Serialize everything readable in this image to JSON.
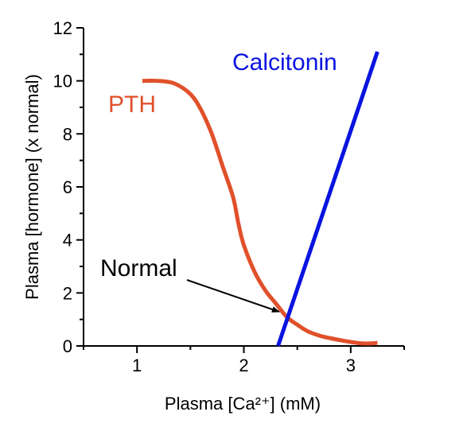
{
  "chart_data": {
    "type": "line",
    "title": "",
    "xlabel": "Plasma [Ca²⁺] (mM)",
    "ylabel": "Plasma [hormone] (x normal)",
    "xlim": [
      0.5,
      3.5
    ],
    "ylim": [
      0,
      12
    ],
    "xticks": [
      1,
      2,
      3
    ],
    "xtick_labels": [
      "1",
      "2",
      "3"
    ],
    "yticks": [
      0,
      2,
      4,
      6,
      8,
      10,
      12
    ],
    "ytick_labels": [
      "0",
      "2",
      "4",
      "6",
      "8",
      "10",
      "12"
    ],
    "grid": false,
    "legend": "none",
    "series": [
      {
        "name": "PTH",
        "color": "#e0502a",
        "x": [
          1.05,
          1.2,
          1.35,
          1.5,
          1.6,
          1.7,
          1.8,
          1.9,
          1.95,
          2.0,
          2.1,
          2.2,
          2.3,
          2.4,
          2.5,
          2.6,
          2.7,
          2.8,
          2.9,
          3.0,
          3.1,
          3.2,
          3.25
        ],
        "y": [
          10.0,
          10.0,
          9.9,
          9.5,
          8.9,
          8.0,
          6.8,
          5.6,
          4.6,
          3.8,
          2.8,
          2.1,
          1.6,
          1.1,
          0.8,
          0.55,
          0.4,
          0.3,
          0.22,
          0.15,
          0.1,
          0.1,
          0.12
        ]
      },
      {
        "name": "Calcitonin",
        "color": "#0a14e0",
        "x": [
          2.32,
          3.25
        ],
        "y": [
          0.0,
          11.1
        ]
      }
    ],
    "annotations": [
      {
        "text": "Normal",
        "arrow_to": [
          2.39,
          1.2
        ],
        "text_at": [
          1.2,
          2.7
        ]
      }
    ]
  }
}
